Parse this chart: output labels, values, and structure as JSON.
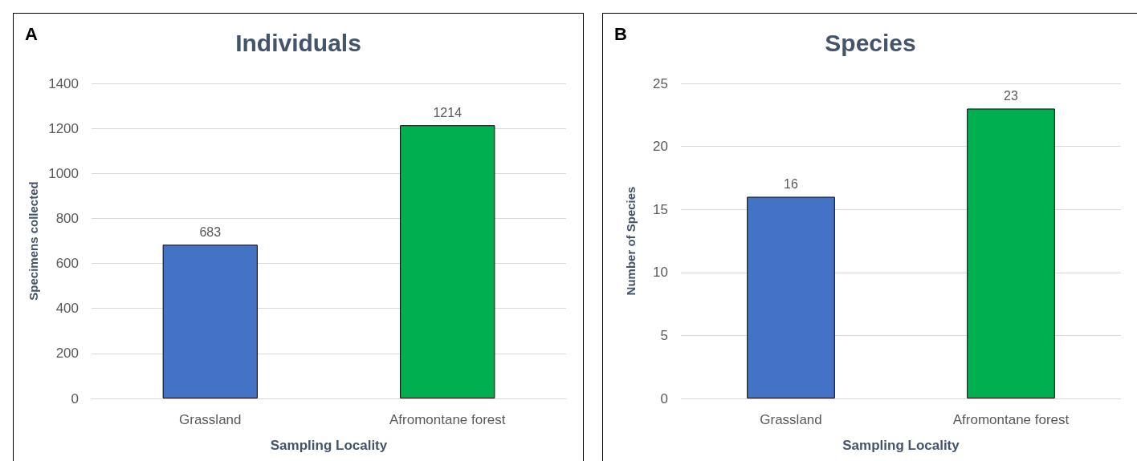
{
  "chart_data": [
    {
      "type": "bar",
      "title": "Individuals",
      "annotations": [
        "A"
      ],
      "xlabel": "Sampling Locality",
      "ylabel": "Specimens collected",
      "categories": [
        "Grassland",
        "Afromontane forest"
      ],
      "values": [
        683,
        1214
      ],
      "colors": [
        "#4472c4",
        "#00b050"
      ],
      "ylim": [
        0,
        1400
      ],
      "yticks": [
        0,
        200,
        400,
        600,
        800,
        1000,
        1200,
        1400
      ],
      "grid": "y",
      "data_labels": true
    },
    {
      "type": "bar",
      "title": "Species",
      "annotations": [
        "B"
      ],
      "xlabel": "Sampling Locality",
      "ylabel": "Number of Species",
      "categories": [
        "Grassland",
        "Afromontane forest"
      ],
      "values": [
        16,
        23
      ],
      "colors": [
        "#4472c4",
        "#00b050"
      ],
      "ylim": [
        0,
        25
      ],
      "yticks": [
        0,
        5,
        10,
        15,
        20,
        25
      ],
      "grid": "y",
      "data_labels": true
    }
  ]
}
